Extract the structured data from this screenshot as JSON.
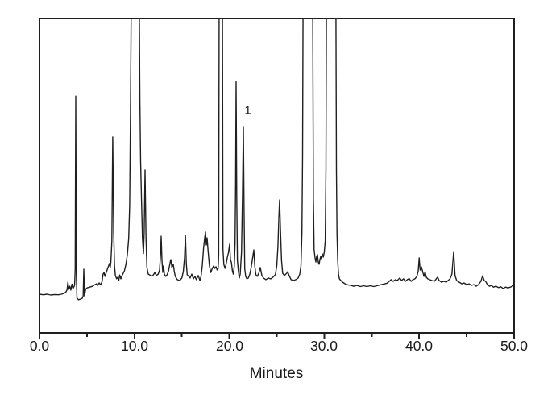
{
  "figure": {
    "background": "#ffffff",
    "line_color": "#1f1f1f",
    "frame_color": "#1f1f1f"
  },
  "chart_data": {
    "type": "line",
    "title": "",
    "xlabel": "Minutes",
    "ylabel": "",
    "xlim": [
      0,
      50
    ],
    "ylim": [
      0,
      100
    ],
    "grid": false,
    "legend": "none",
    "y_axis_labels_visible": false,
    "x_ticks": [
      {
        "value": 0,
        "label": "0.0"
      },
      {
        "value": 10,
        "label": "10.0"
      },
      {
        "value": 20,
        "label": "20.0"
      },
      {
        "value": 30,
        "label": "30.0"
      },
      {
        "value": 40,
        "label": "40.0"
      },
      {
        "value": 50,
        "label": "50.0"
      }
    ],
    "x_minor_ticks": [
      5,
      15,
      25,
      35,
      45
    ],
    "annotations": [
      {
        "text": "1",
        "x": 21.95,
        "y": 66.5,
        "labels_peak_at_min": 21.48
      }
    ],
    "peaks": [
      {
        "t_min": 3.0,
        "intensity": 4.1,
        "clipped": false
      },
      {
        "t_min": 3.82,
        "intensity": 71.8,
        "clipped": false
      },
      {
        "t_min": 4.67,
        "intensity": 8.8,
        "clipped": false
      },
      {
        "t_min": 7.38,
        "intensity": 10.9,
        "clipped": false
      },
      {
        "t_min": 7.72,
        "intensity": 56.9,
        "clipped": false
      },
      {
        "t_min": 10.1,
        "intensity": 100,
        "clipped": true
      },
      {
        "t_min": 11.12,
        "intensity": 44.9,
        "clipped": false
      },
      {
        "t_min": 12.82,
        "intensity": 20.8,
        "clipped": false
      },
      {
        "t_min": 13.84,
        "intensity": 12.3,
        "clipped": false
      },
      {
        "t_min": 15.37,
        "intensity": 21.1,
        "clipped": false
      },
      {
        "t_min": 17.49,
        "intensity": 22.3,
        "clipped": false
      },
      {
        "t_min": 19.1,
        "intensity": 100,
        "clipped": true
      },
      {
        "t_min": 20.03,
        "intensity": 17.9,
        "clipped": false
      },
      {
        "t_min": 20.71,
        "intensity": 77.1,
        "clipped": false
      },
      {
        "t_min": 21.48,
        "intensity": 60.7,
        "clipped": false,
        "label": "1"
      },
      {
        "t_min": 22.58,
        "intensity": 15.8,
        "clipped": false
      },
      {
        "t_min": 23.26,
        "intensity": 9.4,
        "clipped": false
      },
      {
        "t_min": 25.3,
        "intensity": 34.0,
        "clipped": false
      },
      {
        "t_min": 26.15,
        "intensity": 7.9,
        "clipped": false
      },
      {
        "t_min": 28.3,
        "intensity": 100,
        "clipped": true
      },
      {
        "t_min": 30.7,
        "intensity": 100,
        "clipped": true
      },
      {
        "t_min": 40.0,
        "intensity": 12.9,
        "clipped": false
      },
      {
        "t_min": 40.62,
        "intensity": 7.9,
        "clipped": false
      },
      {
        "t_min": 43.63,
        "intensity": 15.2,
        "clipped": false
      },
      {
        "t_min": 46.68,
        "intensity": 6.4,
        "clipped": false
      }
    ],
    "trace": [
      [
        0,
        -0.3
      ],
      [
        0.4,
        -0.5
      ],
      [
        0.8,
        -0.3
      ],
      [
        1.2,
        -0.6
      ],
      [
        1.6,
        -0.4
      ],
      [
        2.0,
        -0.5
      ],
      [
        2.3,
        -0.3
      ],
      [
        2.6,
        0
      ],
      [
        2.8,
        0.6
      ],
      [
        2.9,
        1.3
      ],
      [
        3.0,
        4.1
      ],
      [
        3.08,
        1.5
      ],
      [
        3.2,
        2.6
      ],
      [
        3.3,
        1.2
      ],
      [
        3.42,
        3.4
      ],
      [
        3.52,
        1.8
      ],
      [
        3.62,
        2.3
      ],
      [
        3.7,
        3.0
      ],
      [
        3.76,
        9
      ],
      [
        3.82,
        71.8
      ],
      [
        3.88,
        7
      ],
      [
        3.95,
        -1.6
      ],
      [
        4.1,
        -2.3
      ],
      [
        4.3,
        -2.1
      ],
      [
        4.5,
        -1.8
      ],
      [
        4.6,
        -0.9
      ],
      [
        4.67,
        8.8
      ],
      [
        4.74,
        -0.9
      ],
      [
        4.86,
        1.5
      ],
      [
        5.0,
        2.0
      ],
      [
        5.3,
        2.3
      ],
      [
        5.6,
        2.6
      ],
      [
        5.85,
        3.2
      ],
      [
        6.0,
        3.5
      ],
      [
        6.1,
        2.9
      ],
      [
        6.28,
        3.8
      ],
      [
        6.45,
        3.1
      ],
      [
        6.6,
        4.4
      ],
      [
        6.7,
        7.0
      ],
      [
        6.8,
        7.6
      ],
      [
        6.9,
        6.2
      ],
      [
        7.0,
        7.3
      ],
      [
        7.12,
        8.5
      ],
      [
        7.25,
        9.7
      ],
      [
        7.38,
        10.9
      ],
      [
        7.45,
        9.4
      ],
      [
        7.52,
        11.5
      ],
      [
        7.62,
        19
      ],
      [
        7.72,
        56.9
      ],
      [
        7.82,
        22
      ],
      [
        7.9,
        10.0
      ],
      [
        8.0,
        6.5
      ],
      [
        8.12,
        5.3
      ],
      [
        8.25,
        5.9
      ],
      [
        8.35,
        4.7
      ],
      [
        8.45,
        6.7
      ],
      [
        8.57,
        5.3
      ],
      [
        8.7,
        6.5
      ],
      [
        8.82,
        7.3
      ],
      [
        8.95,
        8.2
      ],
      [
        9.1,
        10.5
      ],
      [
        9.25,
        14
      ],
      [
        9.4,
        20
      ],
      [
        9.5,
        32
      ],
      [
        9.58,
        65
      ],
      [
        9.68,
        112
      ],
      [
        10.5,
        112
      ],
      [
        10.58,
        70
      ],
      [
        10.65,
        48
      ],
      [
        10.75,
        34
      ],
      [
        10.85,
        20
      ],
      [
        10.95,
        14.5
      ],
      [
        11.03,
        22
      ],
      [
        11.12,
        44.9
      ],
      [
        11.22,
        20
      ],
      [
        11.32,
        9.5
      ],
      [
        11.46,
        7.0
      ],
      [
        11.63,
        6.7
      ],
      [
        11.8,
        6.3
      ],
      [
        11.97,
        6.6
      ],
      [
        12.15,
        7.6
      ],
      [
        12.32,
        6.5
      ],
      [
        12.5,
        7.0
      ],
      [
        12.65,
        8.5
      ],
      [
        12.75,
        14
      ],
      [
        12.82,
        20.8
      ],
      [
        12.9,
        12
      ],
      [
        12.99,
        7.6
      ],
      [
        13.07,
        10.0
      ],
      [
        13.16,
        7.0
      ],
      [
        13.3,
        6.2
      ],
      [
        13.45,
        6.8
      ],
      [
        13.6,
        8.2
      ],
      [
        13.76,
        11.2
      ],
      [
        13.84,
        12.3
      ],
      [
        13.95,
        9.5
      ],
      [
        14.09,
        10.6
      ],
      [
        14.2,
        8
      ],
      [
        14.3,
        6.2
      ],
      [
        14.52,
        5.0
      ],
      [
        14.77,
        4.7
      ],
      [
        15.0,
        5.6
      ],
      [
        15.15,
        8
      ],
      [
        15.28,
        13
      ],
      [
        15.37,
        21.1
      ],
      [
        15.47,
        11
      ],
      [
        15.56,
        6.8
      ],
      [
        15.7,
        6.3
      ],
      [
        15.87,
        5.6
      ],
      [
        16.04,
        7.0
      ],
      [
        16.21,
        5.3
      ],
      [
        16.38,
        6.2
      ],
      [
        16.52,
        5.0
      ],
      [
        16.72,
        6.5
      ],
      [
        16.9,
        4.7
      ],
      [
        17.02,
        6.2
      ],
      [
        17.15,
        10
      ],
      [
        17.28,
        16.4
      ],
      [
        17.4,
        20.2
      ],
      [
        17.49,
        22.3
      ],
      [
        17.57,
        17.6
      ],
      [
        17.66,
        20.2
      ],
      [
        17.75,
        16
      ],
      [
        17.9,
        10.0
      ],
      [
        18.05,
        7.6
      ],
      [
        18.2,
        9.1
      ],
      [
        18.35,
        10.0
      ],
      [
        18.48,
        9.1
      ],
      [
        18.6,
        9.7
      ],
      [
        18.72,
        8.5
      ],
      [
        18.82,
        9
      ],
      [
        18.88,
        14
      ],
      [
        18.93,
        112
      ],
      [
        19.27,
        112
      ],
      [
        19.33,
        16
      ],
      [
        19.42,
        10.5
      ],
      [
        19.55,
        9.1
      ],
      [
        19.65,
        10.5
      ],
      [
        19.78,
        12.9
      ],
      [
        19.9,
        14.7
      ],
      [
        20.03,
        17.9
      ],
      [
        20.12,
        12.3
      ],
      [
        20.22,
        11.2
      ],
      [
        20.32,
        8.2
      ],
      [
        20.42,
        7.0
      ],
      [
        20.52,
        9.7
      ],
      [
        20.6,
        18
      ],
      [
        20.66,
        40
      ],
      [
        20.71,
        77.1
      ],
      [
        20.78,
        35
      ],
      [
        20.85,
        12
      ],
      [
        20.95,
        8.2
      ],
      [
        21.05,
        5.6
      ],
      [
        21.15,
        7.0
      ],
      [
        21.28,
        15
      ],
      [
        21.38,
        35
      ],
      [
        21.48,
        60.7
      ],
      [
        21.55,
        30
      ],
      [
        21.62,
        9
      ],
      [
        21.72,
        6.2
      ],
      [
        21.85,
        5.3
      ],
      [
        22.0,
        5.6
      ],
      [
        22.16,
        7.0
      ],
      [
        22.3,
        9.4
      ],
      [
        22.45,
        12.9
      ],
      [
        22.58,
        15.8
      ],
      [
        22.68,
        10
      ],
      [
        22.8,
        6.8
      ],
      [
        22.95,
        6.2
      ],
      [
        23.1,
        7.3
      ],
      [
        23.26,
        9.4
      ],
      [
        23.43,
        6.5
      ],
      [
        23.6,
        5.6
      ],
      [
        23.85,
        5.0
      ],
      [
        24.1,
        5.6
      ],
      [
        24.36,
        5.3
      ],
      [
        24.6,
        5.9
      ],
      [
        24.85,
        6.8
      ],
      [
        25.0,
        10
      ],
      [
        25.12,
        17
      ],
      [
        25.22,
        28
      ],
      [
        25.3,
        34.0
      ],
      [
        25.4,
        22
      ],
      [
        25.5,
        12
      ],
      [
        25.62,
        7.3
      ],
      [
        25.8,
        6.5
      ],
      [
        25.95,
        7.0
      ],
      [
        26.06,
        7.3
      ],
      [
        26.15,
        7.9
      ],
      [
        26.3,
        6.5
      ],
      [
        26.5,
        5.0
      ],
      [
        26.74,
        4.7
      ],
      [
        27.0,
        5.0
      ],
      [
        27.25,
        5.6
      ],
      [
        27.42,
        7.0
      ],
      [
        27.55,
        10
      ],
      [
        27.65,
        22
      ],
      [
        27.72,
        50
      ],
      [
        27.78,
        112
      ],
      [
        28.78,
        112
      ],
      [
        28.85,
        35
      ],
      [
        28.93,
        16
      ],
      [
        29.03,
        12.9
      ],
      [
        29.12,
        11.4
      ],
      [
        29.2,
        13.5
      ],
      [
        29.29,
        14.1
      ],
      [
        29.37,
        11.4
      ],
      [
        29.46,
        10.6
      ],
      [
        29.54,
        12.3
      ],
      [
        29.63,
        13.5
      ],
      [
        29.71,
        12.6
      ],
      [
        29.8,
        14.4
      ],
      [
        29.9,
        13.2
      ],
      [
        30.0,
        15
      ],
      [
        30.1,
        19
      ],
      [
        30.18,
        45
      ],
      [
        30.24,
        112
      ],
      [
        31.22,
        112
      ],
      [
        31.28,
        45
      ],
      [
        31.34,
        22
      ],
      [
        31.42,
        12
      ],
      [
        31.5,
        7.0
      ],
      [
        31.6,
        5.3
      ],
      [
        31.75,
        4.7
      ],
      [
        31.92,
        4.1
      ],
      [
        32.2,
        3.5
      ],
      [
        32.5,
        3.1
      ],
      [
        32.8,
        2.9
      ],
      [
        33.1,
        2.6
      ],
      [
        33.45,
        2.9
      ],
      [
        33.8,
        2.5
      ],
      [
        34.15,
        2.8
      ],
      [
        34.5,
        2.5
      ],
      [
        34.85,
        2.8
      ],
      [
        35.2,
        2.5
      ],
      [
        35.55,
        2.8
      ],
      [
        35.9,
        3.1
      ],
      [
        36.25,
        3.4
      ],
      [
        36.6,
        3.7
      ],
      [
        36.85,
        4.4
      ],
      [
        37.05,
        5.0
      ],
      [
        37.25,
        4.4
      ],
      [
        37.5,
        5.0
      ],
      [
        37.7,
        4.7
      ],
      [
        37.95,
        5.6
      ],
      [
        38.15,
        4.7
      ],
      [
        38.35,
        5.3
      ],
      [
        38.55,
        4.4
      ],
      [
        38.75,
        5.0
      ],
      [
        38.95,
        5.4
      ],
      [
        39.15,
        4.4
      ],
      [
        39.35,
        5.0
      ],
      [
        39.55,
        5.3
      ],
      [
        39.75,
        6.2
      ],
      [
        39.9,
        8
      ],
      [
        40.0,
        12.9
      ],
      [
        40.1,
        8.5
      ],
      [
        40.22,
        9.7
      ],
      [
        40.35,
        8.2
      ],
      [
        40.5,
        6.2
      ],
      [
        40.62,
        7.9
      ],
      [
        40.75,
        5.9
      ],
      [
        40.9,
        5.3
      ],
      [
        41.1,
        5.0
      ],
      [
        41.35,
        4.7
      ],
      [
        41.6,
        4.4
      ],
      [
        41.8,
        5.3
      ],
      [
        41.95,
        5.9
      ],
      [
        42.1,
        4.7
      ],
      [
        42.35,
        4.1
      ],
      [
        42.6,
        4.4
      ],
      [
        42.85,
        4.1
      ],
      [
        43.05,
        4.7
      ],
      [
        43.25,
        5.3
      ],
      [
        43.45,
        7.0
      ],
      [
        43.63,
        15.2
      ],
      [
        43.78,
        6.5
      ],
      [
        43.95,
        4.7
      ],
      [
        44.2,
        4.1
      ],
      [
        44.5,
        3.5
      ],
      [
        44.72,
        3.8
      ],
      [
        45.0,
        3.2
      ],
      [
        45.25,
        3.5
      ],
      [
        45.5,
        2.9
      ],
      [
        45.75,
        3.2
      ],
      [
        46.0,
        2.6
      ],
      [
        46.25,
        3.2
      ],
      [
        46.5,
        4.4
      ],
      [
        46.68,
        6.4
      ],
      [
        46.85,
        4.7
      ],
      [
        47.02,
        4.3
      ],
      [
        47.2,
        3.1
      ],
      [
        47.4,
        2.6
      ],
      [
        47.6,
        2.9
      ],
      [
        47.82,
        2.3
      ],
      [
        48.1,
        2.6
      ],
      [
        48.35,
        2.1
      ],
      [
        48.6,
        2.4
      ],
      [
        48.85,
        1.8
      ],
      [
        49.1,
        2.3
      ],
      [
        49.35,
        2.0
      ],
      [
        49.6,
        2.3
      ],
      [
        49.8,
        2.6
      ],
      [
        50.0,
        2.9
      ]
    ]
  }
}
